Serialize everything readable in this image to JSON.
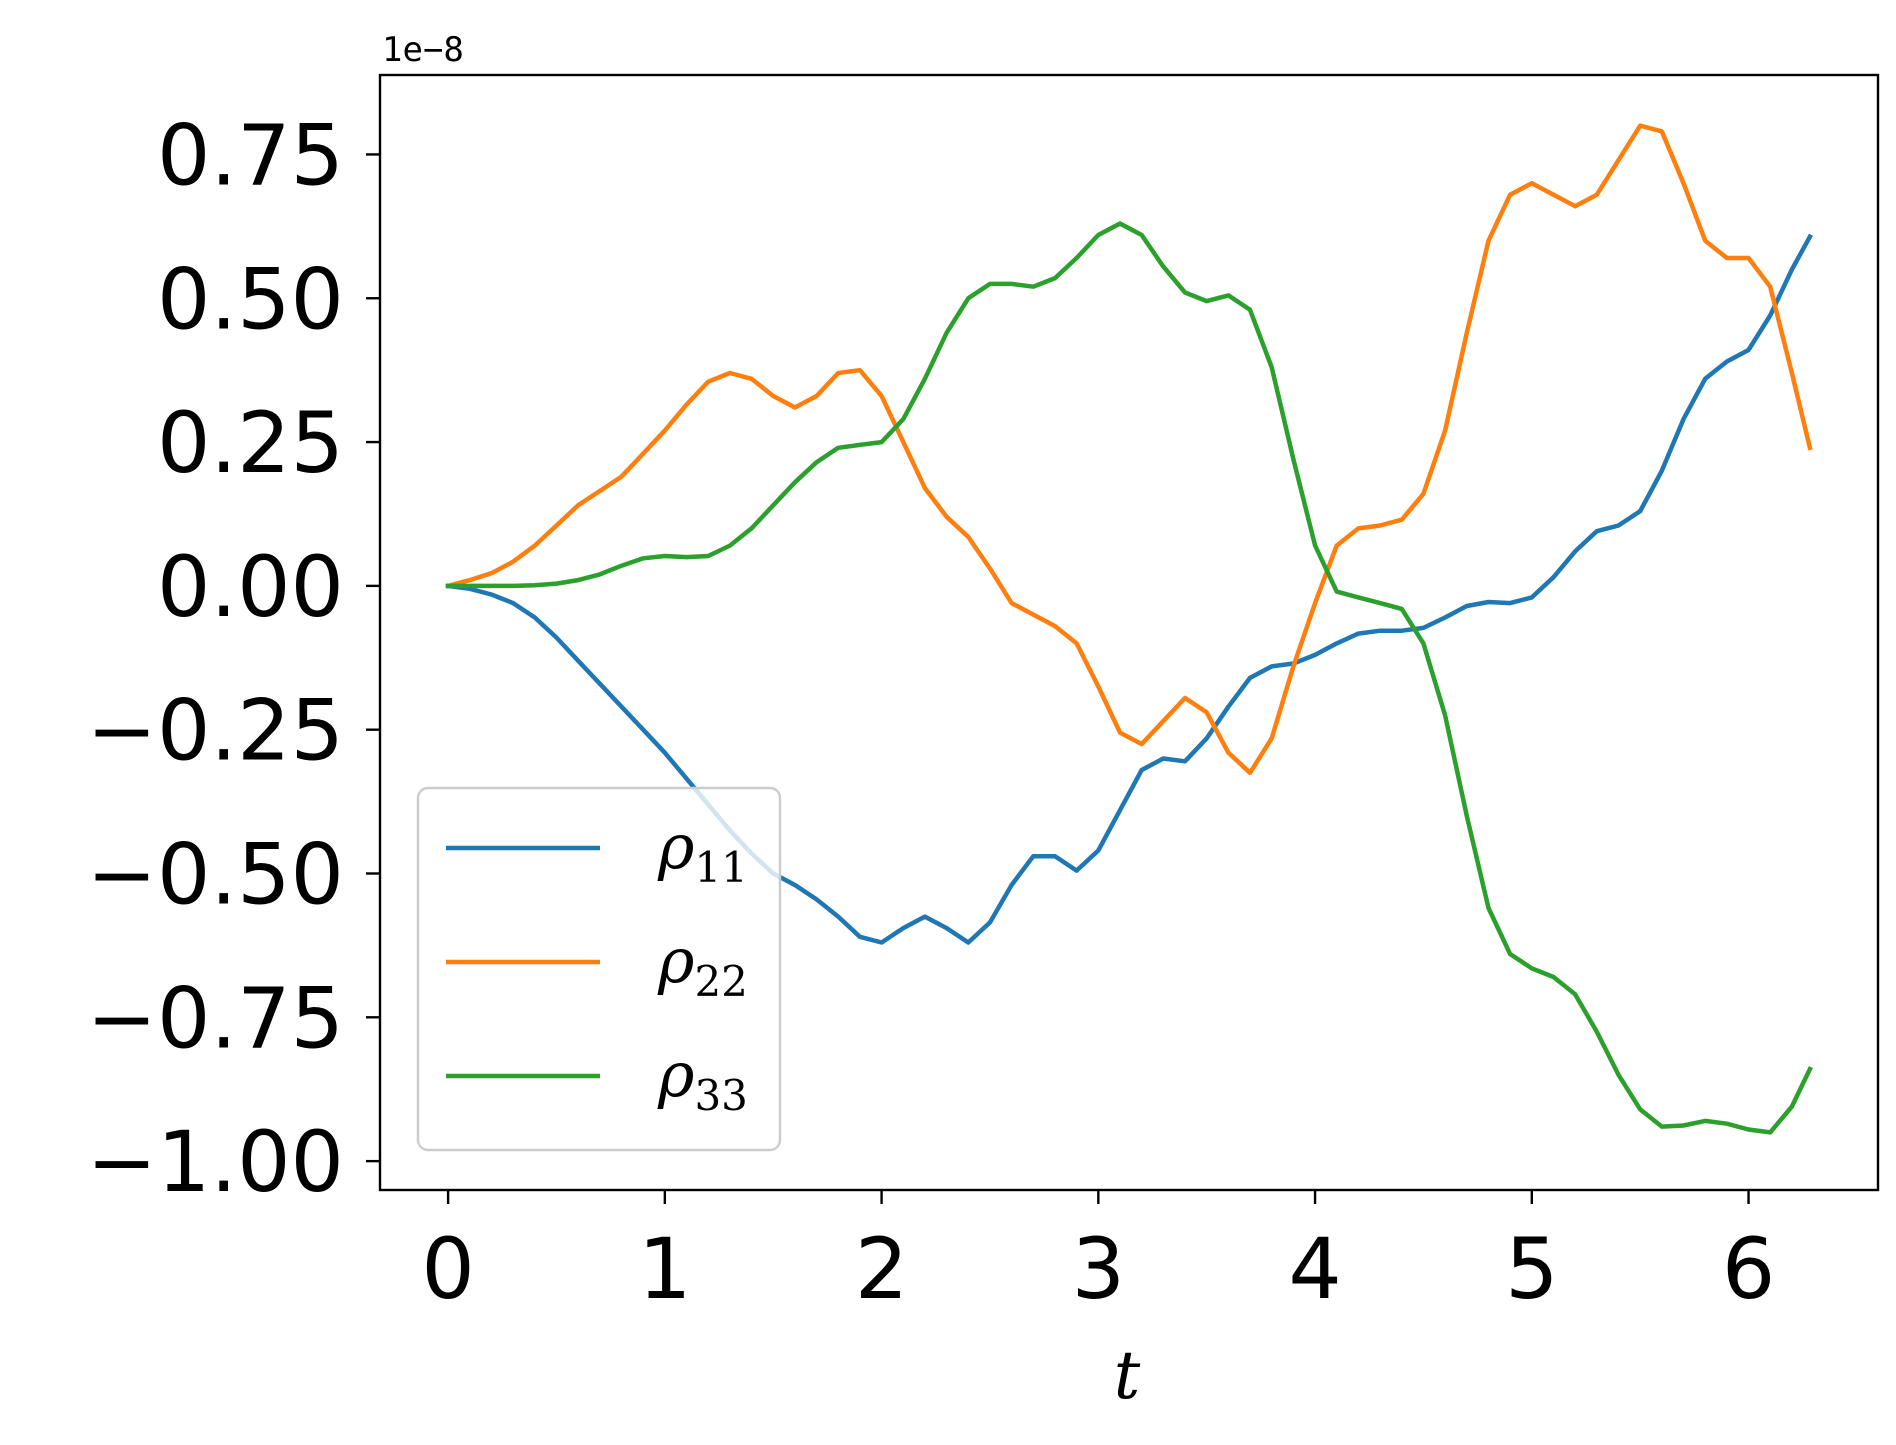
{
  "chart_data": {
    "type": "line",
    "offset_text": "1e−8",
    "xlabel": "t",
    "ylabel": "",
    "xlim": [
      -0.3142,
      6.5973
    ],
    "ylim": [
      -1.0502,
      0.8881
    ],
    "x_ticks": [
      0,
      1,
      2,
      3,
      4,
      5,
      6
    ],
    "x_tick_labels": [
      "0",
      "1",
      "2",
      "3",
      "4",
      "5",
      "6"
    ],
    "y_ticks": [
      0.75,
      0.5,
      0.25,
      0.0,
      -0.25,
      -0.5,
      -0.75,
      -1.0
    ],
    "y_tick_labels": [
      "0.75",
      "0.50",
      "0.25",
      "0.00",
      "−0.25",
      "−0.50",
      "−0.75",
      "−1.00"
    ],
    "grid": false,
    "legend_position": "lower-left",
    "x": [
      0.0,
      0.1,
      0.2,
      0.3,
      0.4,
      0.5,
      0.6,
      0.7,
      0.8,
      0.9,
      1.0,
      1.1,
      1.2,
      1.3,
      1.4,
      1.5,
      1.6,
      1.7,
      1.8,
      1.9,
      2.0,
      2.1,
      2.2,
      2.3,
      2.4,
      2.5,
      2.6,
      2.7,
      2.8,
      2.9,
      3.0,
      3.1,
      3.2,
      3.3,
      3.4,
      3.5,
      3.6,
      3.7,
      3.8,
      3.9,
      4.0,
      4.1,
      4.2,
      4.3,
      4.4,
      4.5,
      4.6,
      4.7,
      4.8,
      4.9,
      5.0,
      5.1,
      5.2,
      5.3,
      5.4,
      5.5,
      5.6,
      5.7,
      5.8,
      5.9,
      6.0,
      6.1,
      6.2,
      6.283
    ],
    "series": [
      {
        "name": "ρ11",
        "legend_base": "ρ",
        "legend_sub": "11",
        "color": "#1f77b4",
        "values": [
          0.0,
          -0.005,
          -0.015,
          -0.03,
          -0.055,
          -0.09,
          -0.13,
          -0.17,
          -0.21,
          -0.25,
          -0.29,
          -0.335,
          -0.38,
          -0.425,
          -0.465,
          -0.5,
          -0.52,
          -0.545,
          -0.575,
          -0.61,
          -0.62,
          -0.595,
          -0.575,
          -0.595,
          -0.62,
          -0.585,
          -0.52,
          -0.47,
          -0.47,
          -0.495,
          -0.46,
          -0.39,
          -0.32,
          -0.3,
          -0.305,
          -0.265,
          -0.21,
          -0.16,
          -0.14,
          -0.135,
          -0.12,
          -0.1,
          -0.083,
          -0.078,
          -0.078,
          -0.073,
          -0.055,
          -0.035,
          -0.028,
          -0.03,
          -0.02,
          0.015,
          0.06,
          0.095,
          0.105,
          0.13,
          0.2,
          0.29,
          0.36,
          0.39,
          0.41,
          0.47,
          0.55,
          0.607
        ]
      },
      {
        "name": "ρ22",
        "legend_base": "ρ",
        "legend_sub": "22",
        "color": "#ff7f0e",
        "values": [
          0.0,
          0.01,
          0.022,
          0.042,
          0.07,
          0.105,
          0.14,
          0.165,
          0.19,
          0.23,
          0.27,
          0.315,
          0.355,
          0.37,
          0.36,
          0.33,
          0.31,
          0.33,
          0.37,
          0.375,
          0.33,
          0.25,
          0.17,
          0.12,
          0.085,
          0.03,
          -0.03,
          -0.05,
          -0.07,
          -0.1,
          -0.175,
          -0.255,
          -0.275,
          -0.235,
          -0.195,
          -0.22,
          -0.29,
          -0.325,
          -0.265,
          -0.14,
          -0.03,
          0.07,
          0.1,
          0.105,
          0.115,
          0.16,
          0.27,
          0.44,
          0.6,
          0.68,
          0.7,
          0.68,
          0.66,
          0.68,
          0.74,
          0.8,
          0.79,
          0.7,
          0.6,
          0.57,
          0.57,
          0.52,
          0.37,
          0.24
        ]
      },
      {
        "name": "ρ33",
        "legend_base": "ρ",
        "legend_sub": "33",
        "color": "#2ca02c",
        "values": [
          0.0,
          0.0,
          0.0,
          0.0,
          0.001,
          0.004,
          0.01,
          0.02,
          0.035,
          0.048,
          0.052,
          0.05,
          0.052,
          0.07,
          0.1,
          0.14,
          0.18,
          0.215,
          0.24,
          0.245,
          0.25,
          0.29,
          0.36,
          0.44,
          0.5,
          0.525,
          0.525,
          0.52,
          0.535,
          0.57,
          0.61,
          0.63,
          0.61,
          0.555,
          0.51,
          0.495,
          0.505,
          0.48,
          0.38,
          0.22,
          0.07,
          -0.01,
          -0.02,
          -0.03,
          -0.04,
          -0.1,
          -0.225,
          -0.4,
          -0.56,
          -0.64,
          -0.665,
          -0.68,
          -0.71,
          -0.775,
          -0.85,
          -0.91,
          -0.94,
          -0.938,
          -0.93,
          -0.935,
          -0.945,
          -0.95,
          -0.905,
          -0.84
        ]
      }
    ]
  }
}
